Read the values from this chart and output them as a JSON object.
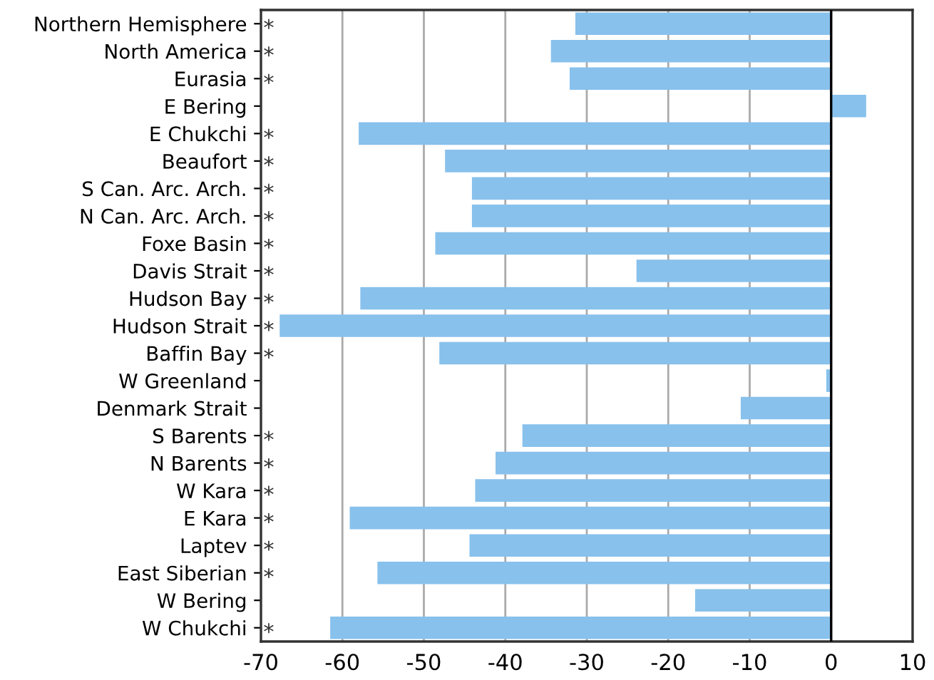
{
  "chart_data": {
    "type": "bar",
    "orientation": "horizontal",
    "categories": [
      "Northern Hemisphere",
      "North America",
      "Eurasia",
      "E Bering",
      "E Chukchi",
      "Beaufort",
      "S Can. Arc. Arch.",
      "N Can. Arc. Arch.",
      "Foxe Basin",
      "Davis Strait",
      "Hudson Bay",
      "Hudson Strait",
      "Baffin Bay",
      "W Greenland",
      "Denmark Strait",
      "S Barents",
      "N Barents",
      "W Kara",
      "E Kara",
      "Laptev",
      "East Siberian",
      "W Bering",
      "W Chukchi"
    ],
    "values": [
      -31.4,
      -34.4,
      -32.1,
      4.3,
      -58.0,
      -47.4,
      -44.1,
      -44.1,
      -48.6,
      -23.9,
      -57.8,
      -67.7,
      -48.1,
      -0.6,
      -11.1,
      -37.9,
      -41.2,
      -43.7,
      -59.1,
      -44.4,
      -55.7,
      -16.7,
      -61.5
    ],
    "color": "#88c1ec",
    "xlim": [
      -70,
      10
    ],
    "xticks": [
      -70,
      -60,
      -50,
      -40,
      -30,
      -20,
      -10,
      0,
      10
    ],
    "grid": "x",
    "ref_lines": [
      {
        "axis": "x",
        "value": 0,
        "label": null,
        "color": "#000000"
      }
    ],
    "value_labels": [
      "*",
      "*",
      "*",
      null,
      "*",
      "*",
      "*",
      "*",
      "*",
      "*",
      "*",
      "*",
      "*",
      null,
      null,
      "*",
      "*",
      "*",
      "*",
      "*",
      "*",
      null,
      "*"
    ]
  }
}
